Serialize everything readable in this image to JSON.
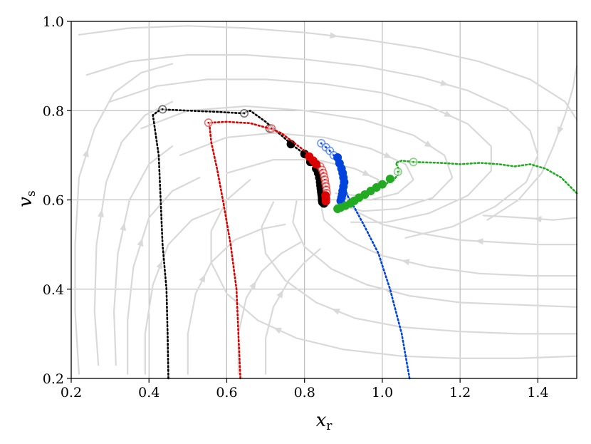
{
  "chart_data": {
    "type": "scatter",
    "title": "",
    "xlabel": "x",
    "xlabel_sub": "r",
    "ylabel": "v",
    "ylabel_sub": "s",
    "xlim": [
      0.2,
      1.5
    ],
    "ylim": [
      0.2,
      1.0
    ],
    "xticks": [
      0.2,
      0.4,
      0.6,
      0.8,
      1.0,
      1.2,
      1.4
    ],
    "yticks": [
      0.2,
      0.4,
      0.6,
      0.8,
      1.0
    ],
    "x_tick_labels": [
      "0.2",
      "0.4",
      "0.6",
      "0.8",
      "1.0",
      "1.2",
      "1.4"
    ],
    "y_tick_labels": [
      "0.2",
      "0.4",
      "0.6",
      "0.8",
      "1.0"
    ],
    "grid": true,
    "colors": {
      "stream": "#d9d9d9",
      "grid": "#b0b0b0",
      "black": "#000000",
      "red": "#dd0000",
      "blue": "#0044dd",
      "green": "#22aa22"
    },
    "streamlines": [
      [
        [
          0.22,
          0.97
        ],
        [
          0.35,
          0.985
        ],
        [
          0.5,
          0.99
        ],
        [
          0.65,
          0.985
        ],
        [
          0.8,
          0.975
        ],
        [
          0.95,
          0.96
        ],
        [
          1.1,
          0.94
        ],
        [
          1.25,
          0.91
        ],
        [
          1.38,
          0.87
        ],
        [
          1.47,
          0.82
        ],
        [
          1.5,
          0.78
        ]
      ],
      [
        [
          0.24,
          0.88
        ],
        [
          0.35,
          0.91
        ],
        [
          0.5,
          0.925
        ],
        [
          0.65,
          0.925
        ],
        [
          0.8,
          0.915
        ],
        [
          0.95,
          0.9
        ],
        [
          1.1,
          0.875
        ],
        [
          1.22,
          0.845
        ],
        [
          1.32,
          0.805
        ],
        [
          1.38,
          0.755
        ],
        [
          1.4,
          0.7
        ],
        [
          1.37,
          0.64
        ],
        [
          1.29,
          0.585
        ],
        [
          1.18,
          0.54
        ],
        [
          1.06,
          0.515
        ]
      ],
      [
        [
          0.3,
          0.82
        ],
        [
          0.42,
          0.855
        ],
        [
          0.55,
          0.87
        ],
        [
          0.7,
          0.87
        ],
        [
          0.85,
          0.86
        ],
        [
          1.0,
          0.84
        ],
        [
          1.12,
          0.81
        ],
        [
          1.22,
          0.77
        ],
        [
          1.28,
          0.72
        ],
        [
          1.28,
          0.665
        ],
        [
          1.22,
          0.61
        ],
        [
          1.12,
          0.57
        ],
        [
          1.01,
          0.55
        ],
        [
          0.92,
          0.55
        ]
      ],
      [
        [
          0.38,
          0.76
        ],
        [
          0.5,
          0.8
        ],
        [
          0.65,
          0.81
        ],
        [
          0.8,
          0.8
        ],
        [
          0.95,
          0.78
        ],
        [
          1.08,
          0.745
        ],
        [
          1.16,
          0.7
        ],
        [
          1.18,
          0.65
        ],
        [
          1.13,
          0.605
        ],
        [
          1.04,
          0.58
        ],
        [
          0.95,
          0.575
        ],
        [
          0.88,
          0.59
        ]
      ],
      [
        [
          0.48,
          0.7
        ],
        [
          0.6,
          0.74
        ],
        [
          0.72,
          0.75
        ],
        [
          0.85,
          0.74
        ],
        [
          0.97,
          0.715
        ],
        [
          1.06,
          0.68
        ],
        [
          1.08,
          0.645
        ],
        [
          1.04,
          0.615
        ],
        [
          0.97,
          0.6
        ],
        [
          0.9,
          0.605
        ]
      ],
      [
        [
          0.6,
          0.66
        ],
        [
          0.72,
          0.69
        ],
        [
          0.83,
          0.69
        ],
        [
          0.93,
          0.67
        ],
        [
          0.99,
          0.645
        ],
        [
          0.98,
          0.62
        ],
        [
          0.93,
          0.61
        ],
        [
          0.88,
          0.615
        ]
      ],
      [
        [
          0.22,
          0.21
        ],
        [
          0.21,
          0.35
        ],
        [
          0.21,
          0.5
        ],
        [
          0.22,
          0.65
        ],
        [
          0.26,
          0.76
        ],
        [
          0.31,
          0.84
        ],
        [
          0.38,
          0.885
        ],
        [
          0.46,
          0.905
        ]
      ],
      [
        [
          0.27,
          0.23
        ],
        [
          0.26,
          0.35
        ],
        [
          0.265,
          0.5
        ],
        [
          0.29,
          0.64
        ],
        [
          0.33,
          0.73
        ],
        [
          0.39,
          0.79
        ],
        [
          0.46,
          0.82
        ]
      ],
      [
        [
          0.315,
          0.23
        ],
        [
          0.31,
          0.35
        ],
        [
          0.32,
          0.48
        ],
        [
          0.35,
          0.6
        ],
        [
          0.4,
          0.68
        ],
        [
          0.46,
          0.72
        ]
      ],
      [
        [
          0.345,
          0.21
        ],
        [
          0.345,
          0.33
        ],
        [
          0.36,
          0.45
        ],
        [
          0.4,
          0.56
        ],
        [
          0.46,
          0.62
        ],
        [
          0.53,
          0.65
        ]
      ],
      [
        [
          0.39,
          0.21
        ],
        [
          0.39,
          0.3
        ],
        [
          0.41,
          0.41
        ],
        [
          0.45,
          0.5
        ],
        [
          0.51,
          0.555
        ],
        [
          0.58,
          0.58
        ]
      ],
      [
        [
          0.5,
          0.21
        ],
        [
          0.5,
          0.3
        ],
        [
          0.52,
          0.39
        ],
        [
          0.56,
          0.46
        ],
        [
          0.62,
          0.51
        ],
        [
          0.69,
          0.535
        ],
        [
          0.75,
          0.545
        ]
      ],
      [
        [
          0.63,
          0.21
        ],
        [
          0.63,
          0.3
        ],
        [
          0.65,
          0.38
        ],
        [
          0.69,
          0.44
        ],
        [
          0.74,
          0.48
        ],
        [
          0.79,
          0.505
        ]
      ],
      [
        [
          0.7,
          0.21
        ],
        [
          0.7,
          0.29
        ],
        [
          0.72,
          0.36
        ],
        [
          0.76,
          0.42
        ],
        [
          0.8,
          0.46
        ],
        [
          0.84,
          0.49
        ]
      ],
      [
        [
          1.5,
          0.25
        ],
        [
          1.35,
          0.245
        ],
        [
          1.2,
          0.245
        ],
        [
          1.05,
          0.25
        ],
        [
          0.9,
          0.265
        ],
        [
          0.78,
          0.29
        ],
        [
          0.68,
          0.33
        ],
        [
          0.6,
          0.39
        ],
        [
          0.56,
          0.46
        ],
        [
          0.56,
          0.53
        ],
        [
          0.6,
          0.6
        ],
        [
          0.66,
          0.645
        ]
      ],
      [
        [
          1.5,
          0.3
        ],
        [
          1.35,
          0.3
        ],
        [
          1.2,
          0.305
        ],
        [
          1.05,
          0.315
        ],
        [
          0.93,
          0.335
        ],
        [
          0.83,
          0.37
        ],
        [
          0.75,
          0.42
        ],
        [
          0.7,
          0.48
        ],
        [
          0.69,
          0.54
        ],
        [
          0.72,
          0.595
        ]
      ],
      [
        [
          1.5,
          0.36
        ],
        [
          1.35,
          0.365
        ],
        [
          1.2,
          0.37
        ],
        [
          1.07,
          0.385
        ],
        [
          0.96,
          0.41
        ],
        [
          0.87,
          0.445
        ],
        [
          0.8,
          0.495
        ],
        [
          0.77,
          0.55
        ],
        [
          0.78,
          0.6
        ]
      ],
      [
        [
          1.5,
          0.43
        ],
        [
          1.38,
          0.43
        ],
        [
          1.25,
          0.435
        ],
        [
          1.12,
          0.45
        ],
        [
          1.0,
          0.475
        ],
        [
          0.91,
          0.51
        ],
        [
          0.85,
          0.555
        ],
        [
          0.84,
          0.6
        ]
      ],
      [
        [
          1.5,
          0.5
        ],
        [
          1.4,
          0.5
        ],
        [
          1.3,
          0.505
        ],
        [
          1.2,
          0.51
        ],
        [
          1.1,
          0.525
        ],
        [
          1.0,
          0.545
        ],
        [
          0.93,
          0.575
        ]
      ],
      [
        [
          1.5,
          0.56
        ],
        [
          1.44,
          0.555
        ],
        [
          1.36,
          0.56
        ],
        [
          1.26,
          0.565
        ]
      ],
      [
        [
          1.5,
          0.9
        ],
        [
          1.49,
          0.85
        ],
        [
          1.47,
          0.79
        ],
        [
          1.44,
          0.72
        ],
        [
          1.41,
          0.66
        ],
        [
          1.35,
          0.6
        ],
        [
          1.27,
          0.555
        ]
      ]
    ],
    "series": [
      {
        "color": "#000000",
        "path": [
          [
            0.45,
            0.2
          ],
          [
            0.448,
            0.3
          ],
          [
            0.445,
            0.4
          ],
          [
            0.435,
            0.5
          ],
          [
            0.43,
            0.6
          ],
          [
            0.425,
            0.7
          ],
          [
            0.41,
            0.79
          ],
          [
            0.43,
            0.803
          ],
          [
            0.5,
            0.8
          ],
          [
            0.58,
            0.797
          ],
          [
            0.64,
            0.794
          ],
          [
            0.66,
            0.8
          ],
          [
            0.7,
            0.775
          ],
          [
            0.74,
            0.745
          ],
          [
            0.77,
            0.722
          ],
          [
            0.8,
            0.703
          ],
          [
            0.82,
            0.683
          ],
          [
            0.835,
            0.66
          ],
          [
            0.84,
            0.64
          ],
          [
            0.84,
            0.62
          ],
          [
            0.84,
            0.6
          ],
          [
            0.843,
            0.592
          ]
        ],
        "open_markers": [
          [
            0.435,
            0.803
          ],
          [
            0.645,
            0.794
          ],
          [
            0.71,
            0.76
          ]
        ],
        "filled_markers": [
          [
            0.765,
            0.725
          ],
          [
            0.8,
            0.703
          ],
          [
            0.815,
            0.685
          ],
          [
            0.83,
            0.67
          ],
          [
            0.835,
            0.66
          ],
          [
            0.838,
            0.65
          ],
          [
            0.84,
            0.64
          ],
          [
            0.841,
            0.632
          ],
          [
            0.842,
            0.625
          ],
          [
            0.843,
            0.618
          ],
          [
            0.844,
            0.612
          ],
          [
            0.845,
            0.606
          ],
          [
            0.845,
            0.6
          ],
          [
            0.846,
            0.595
          ],
          [
            0.85,
            0.592
          ]
        ]
      },
      {
        "color": "#dd0000",
        "path": [
          [
            0.635,
            0.2
          ],
          [
            0.63,
            0.3
          ],
          [
            0.625,
            0.4
          ],
          [
            0.61,
            0.5
          ],
          [
            0.59,
            0.6
          ],
          [
            0.575,
            0.67
          ],
          [
            0.56,
            0.73
          ],
          [
            0.555,
            0.773
          ],
          [
            0.6,
            0.775
          ],
          [
            0.66,
            0.772
          ],
          [
            0.71,
            0.76
          ],
          [
            0.74,
            0.75
          ],
          [
            0.77,
            0.73
          ],
          [
            0.8,
            0.71
          ],
          [
            0.825,
            0.69
          ],
          [
            0.845,
            0.67
          ],
          [
            0.855,
            0.65
          ],
          [
            0.86,
            0.63
          ],
          [
            0.858,
            0.61
          ],
          [
            0.855,
            0.597
          ]
        ],
        "open_markers": [
          [
            0.553,
            0.773
          ],
          [
            0.715,
            0.76
          ],
          [
            0.84,
            0.675
          ],
          [
            0.845,
            0.667
          ],
          [
            0.848,
            0.66
          ],
          [
            0.85,
            0.652
          ],
          [
            0.852,
            0.645
          ],
          [
            0.853,
            0.637
          ],
          [
            0.855,
            0.63
          ],
          [
            0.856,
            0.622
          ],
          [
            0.857,
            0.615
          ]
        ],
        "filled_markers": [
          [
            0.812,
            0.697
          ],
          [
            0.822,
            0.688
          ],
          [
            0.83,
            0.68
          ],
          [
            0.854,
            0.61
          ],
          [
            0.855,
            0.603
          ],
          [
            0.855,
            0.597
          ]
        ]
      },
      {
        "color": "#0044dd",
        "path": [
          [
            1.07,
            0.2
          ],
          [
            1.05,
            0.3
          ],
          [
            1.02,
            0.4
          ],
          [
            0.99,
            0.48
          ],
          [
            0.955,
            0.54
          ],
          [
            0.93,
            0.58
          ],
          [
            0.91,
            0.61
          ],
          [
            0.9,
            0.64
          ],
          [
            0.89,
            0.67
          ],
          [
            0.875,
            0.7
          ],
          [
            0.86,
            0.715
          ],
          [
            0.84,
            0.727
          ]
        ],
        "open_markers": [
          [
            0.843,
            0.727
          ],
          [
            0.855,
            0.718
          ],
          [
            0.865,
            0.71
          ],
          [
            0.875,
            0.7
          ]
        ],
        "filled_markers": [
          [
            0.885,
            0.695
          ],
          [
            0.89,
            0.682
          ],
          [
            0.895,
            0.67
          ],
          [
            0.898,
            0.66
          ],
          [
            0.9,
            0.65
          ],
          [
            0.902,
            0.64
          ],
          [
            0.9,
            0.63
          ],
          [
            0.898,
            0.62
          ],
          [
            0.897,
            0.612
          ],
          [
            0.895,
            0.605
          ],
          [
            0.893,
            0.598
          ]
        ]
      },
      {
        "color": "#22aa22",
        "path": [
          [
            1.5,
            0.615
          ],
          [
            1.46,
            0.65
          ],
          [
            1.42,
            0.67
          ],
          [
            1.38,
            0.68
          ],
          [
            1.34,
            0.675
          ],
          [
            1.3,
            0.68
          ],
          [
            1.25,
            0.683
          ],
          [
            1.2,
            0.68
          ],
          [
            1.15,
            0.683
          ],
          [
            1.08,
            0.685
          ],
          [
            1.05,
            0.688
          ],
          [
            1.035,
            0.683
          ],
          [
            1.045,
            0.663
          ],
          [
            1.03,
            0.645
          ],
          [
            1.0,
            0.632
          ],
          [
            0.97,
            0.618
          ],
          [
            0.94,
            0.6
          ],
          [
            0.91,
            0.585
          ],
          [
            0.885,
            0.58
          ]
        ],
        "open_markers": [
          [
            1.08,
            0.685
          ],
          [
            1.04,
            0.663
          ]
        ],
        "filled_markers": [
          [
            1.02,
            0.647
          ],
          [
            1.0,
            0.635
          ],
          [
            0.985,
            0.628
          ],
          [
            0.97,
            0.62
          ],
          [
            0.955,
            0.612
          ],
          [
            0.94,
            0.605
          ],
          [
            0.928,
            0.598
          ],
          [
            0.918,
            0.592
          ],
          [
            0.905,
            0.587
          ],
          [
            0.893,
            0.583
          ],
          [
            0.885,
            0.58
          ]
        ]
      }
    ]
  }
}
